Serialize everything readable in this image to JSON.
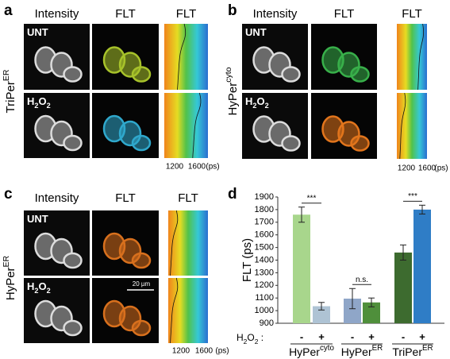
{
  "panels": [
    {
      "letter": "a",
      "headers": [
        "Intensity",
        "FLT",
        "FLT"
      ],
      "rows": [
        [
          "UNT"
        ],
        [
          "H",
          "2",
          "O",
          "2"
        ]
      ],
      "side_label": [
        "TriPer",
        "ER"
      ],
      "axis_ticks": [
        1200,
        1600
      ],
      "axis_unit": "(ps)"
    },
    {
      "letter": "b",
      "headers": [
        "Intensity",
        "FLT",
        "FLT"
      ],
      "rows": [
        [
          "UNT"
        ],
        [
          "H",
          "2",
          "O",
          "2"
        ]
      ],
      "side_label": [
        "HyPer",
        "cyto"
      ],
      "axis_ticks": [
        1200,
        1600
      ],
      "axis_unit": "(ps)"
    },
    {
      "letter": "c",
      "headers": [
        "Intensity",
        "FLT",
        "FLT"
      ],
      "rows": [
        [
          "UNT"
        ],
        [
          "H",
          "2",
          "O",
          "2"
        ]
      ],
      "side_label": [
        "HyPer",
        "ER"
      ],
      "axis_ticks": [
        1200,
        1600
      ],
      "axis_unit": "(ps)",
      "scale_bar": "20 µm"
    }
  ],
  "chart_data": {
    "type": "bar",
    "letter": "d",
    "y_label": "FLT (ps)",
    "ylim": [
      900,
      1900
    ],
    "yticks": [
      900,
      1000,
      1100,
      1200,
      1300,
      1400,
      1500,
      1600,
      1700,
      1800,
      1900
    ],
    "treatment_label": [
      "H",
      "2",
      "O",
      "2",
      " :"
    ],
    "groups": [
      {
        "label": "HyPer",
        "label_sup": "cyto",
        "significance": "***",
        "bars": [
          {
            "treatment": "-",
            "value": 1760,
            "error": 60,
            "color": "#a8d68c"
          },
          {
            "treatment": "+",
            "value": 1035,
            "error": 30,
            "color": "#aec3d4"
          }
        ]
      },
      {
        "label": "HyPer",
        "label_sup": "ER",
        "significance": "n.s.",
        "bars": [
          {
            "treatment": "-",
            "value": 1095,
            "error": 80,
            "color": "#8fa6c8"
          },
          {
            "treatment": "+",
            "value": 1065,
            "error": 35,
            "color": "#4f8f3b"
          }
        ]
      },
      {
        "label": "TriPer",
        "label_sup": "ER",
        "significance": "***",
        "bars": [
          {
            "treatment": "-",
            "value": 1460,
            "error": 60,
            "color": "#3d6b2f"
          },
          {
            "treatment": "+",
            "value": 1800,
            "error": 35,
            "color": "#2f7dc6"
          }
        ]
      }
    ]
  }
}
